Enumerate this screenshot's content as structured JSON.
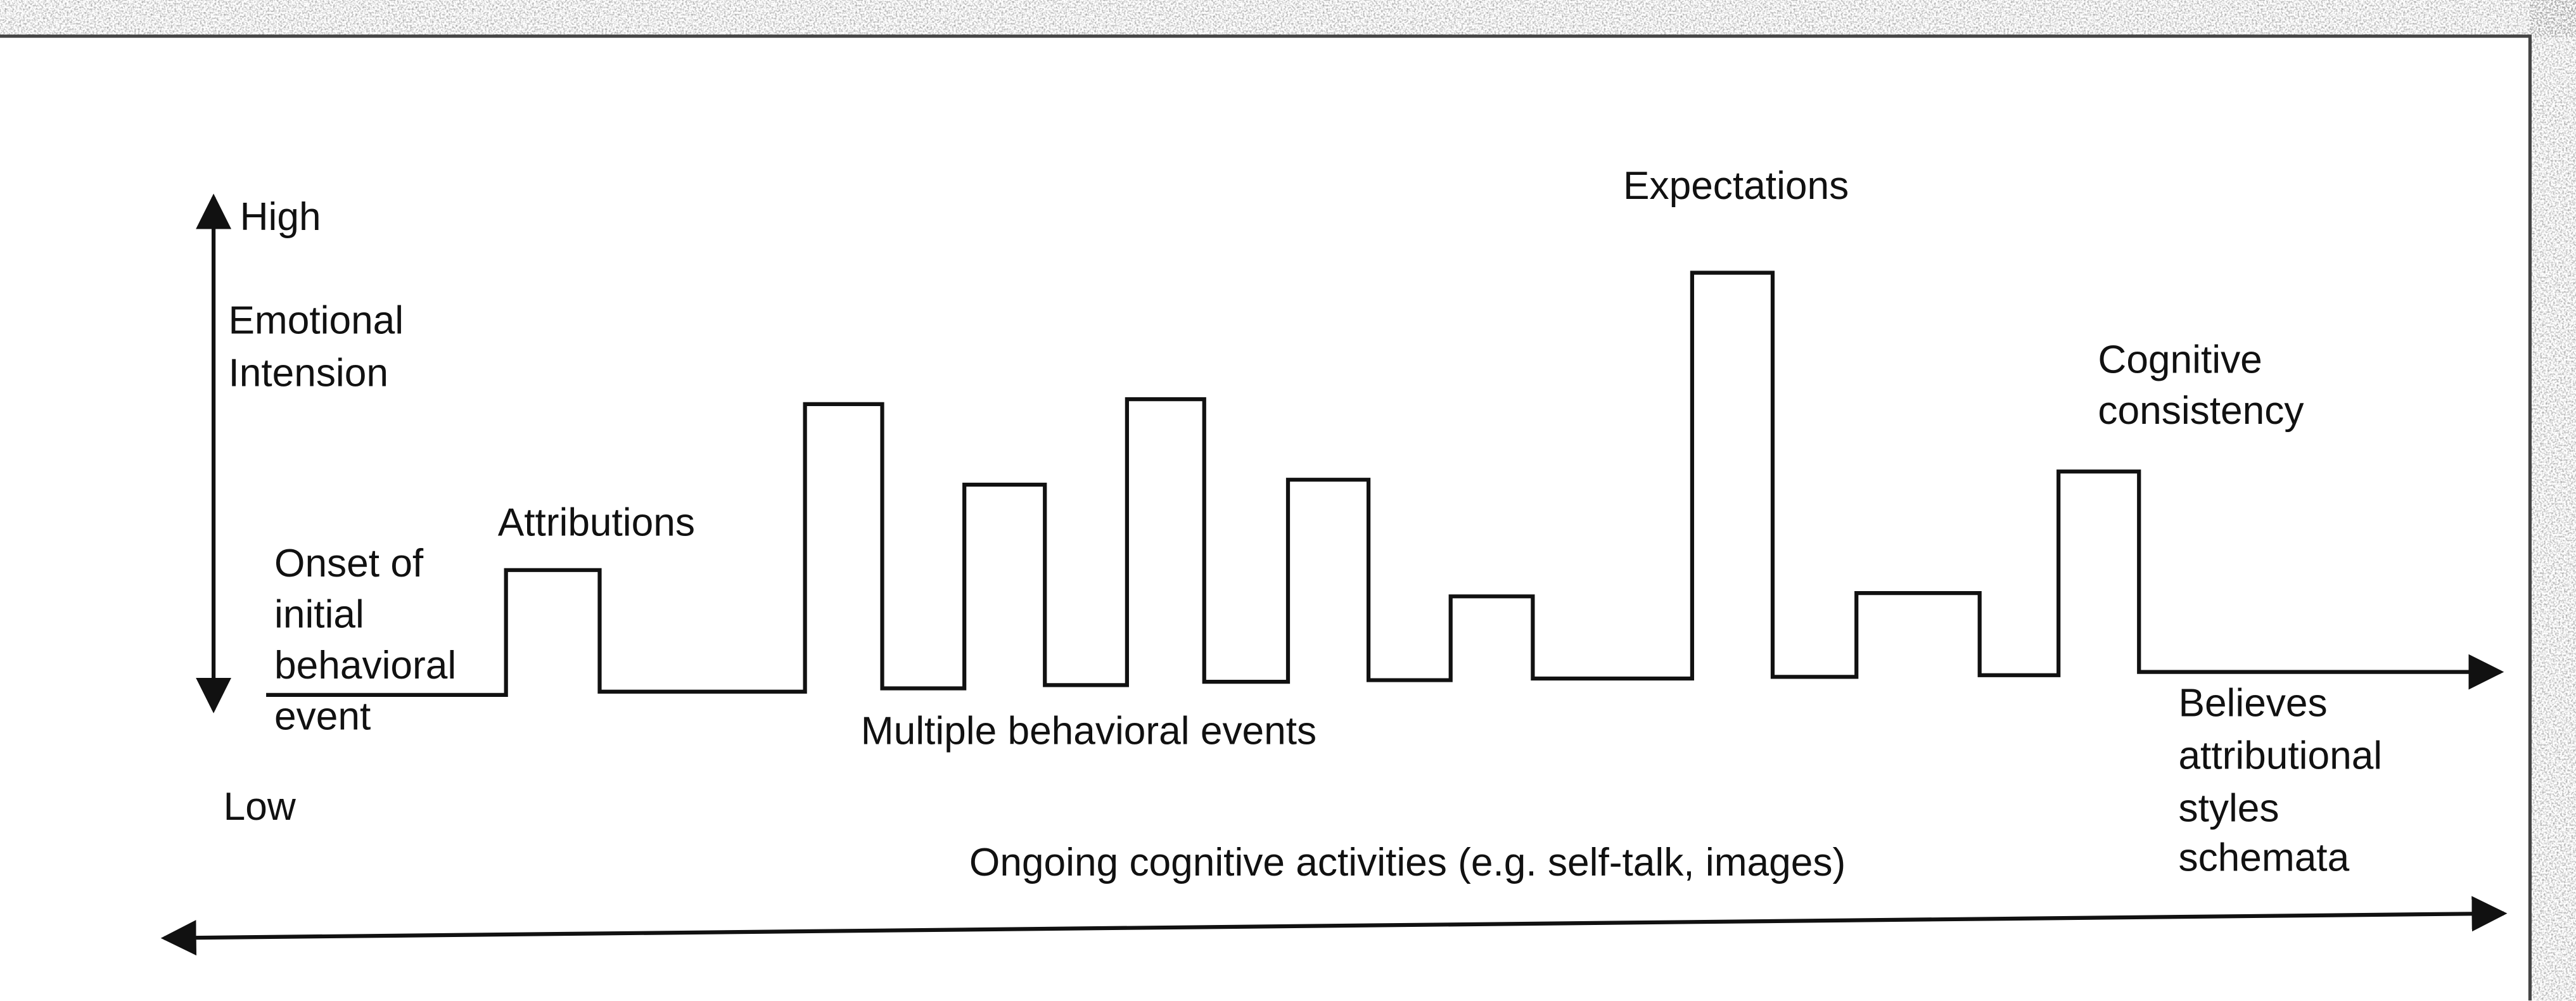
{
  "axis": {
    "high": "High",
    "low": "Low",
    "title": [
      "Emotional",
      "Intension"
    ]
  },
  "labels": {
    "onset": [
      "Onset of",
      "initial",
      "behavioral",
      "event"
    ],
    "attributions": "Attributions",
    "multiple": "Multiple behavioral events",
    "expectations": "Expectations",
    "consistency": [
      "Cognitive",
      "consistency"
    ],
    "believes": [
      "Believes",
      "attributional",
      "styles",
      "schemata"
    ],
    "ongoing": "Ongoing cognitive activities (e.g. self-talk, images)"
  }
}
